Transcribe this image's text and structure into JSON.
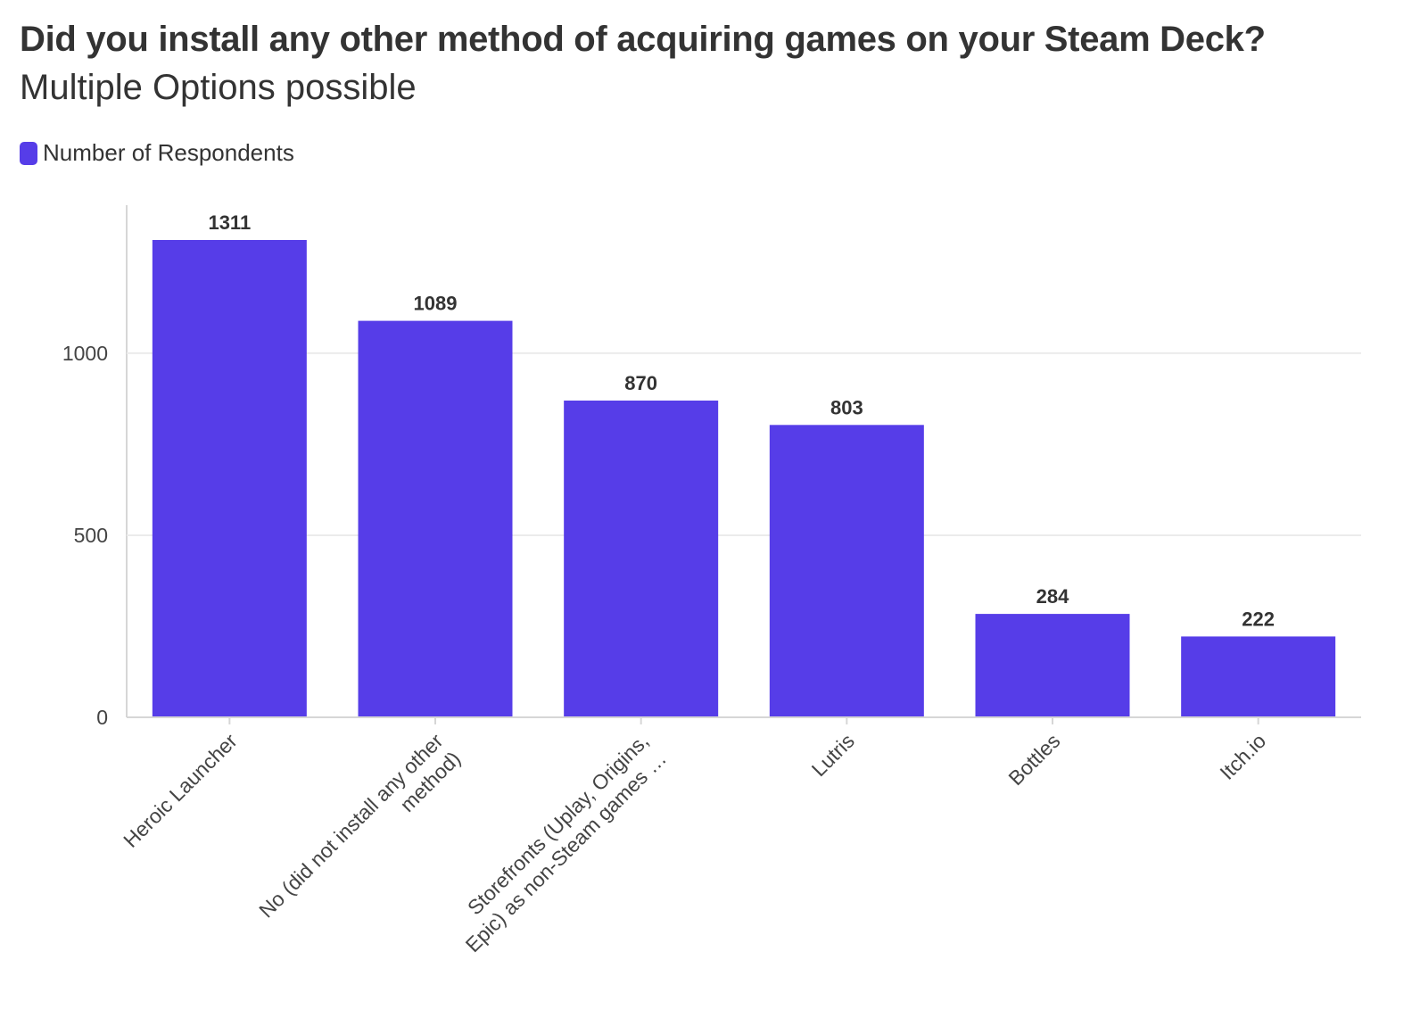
{
  "colors": {
    "bar": "#563de8",
    "grid": "#ebebeb",
    "axis": "#d6d6d6",
    "text": "#333333"
  },
  "chart_data": {
    "type": "bar",
    "title": "Did you install any other method of acquiring games on your Steam Deck?",
    "subtitle": "Multiple Options possible",
    "legend": {
      "position": "top-left",
      "entries": [
        "Number of Respondents"
      ]
    },
    "xlabel": "",
    "ylabel": "",
    "ylim": [
      0,
      1311
    ],
    "yticks": [
      0,
      500,
      1000
    ],
    "grid": true,
    "categories": [
      [
        "Heroic Launcher"
      ],
      [
        "No (did not install any other",
        "method)"
      ],
      [
        "Storefronts (Uplay, Origins,",
        "Epic) as non-Steam games …"
      ],
      [
        "Lutris"
      ],
      [
        "Bottles"
      ],
      [
        "Itch.io"
      ]
    ],
    "series": [
      {
        "name": "Number of Respondents",
        "values": [
          1311,
          1089,
          870,
          803,
          284,
          222
        ]
      }
    ]
  }
}
